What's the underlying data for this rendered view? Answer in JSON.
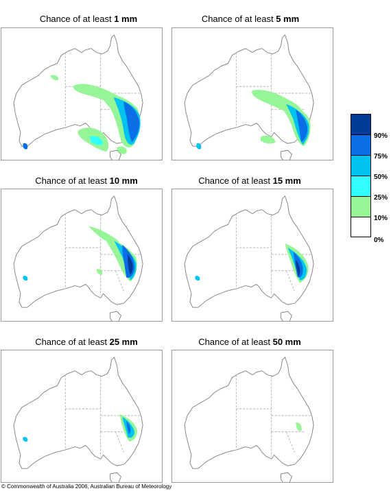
{
  "panels": [
    {
      "prefix": "Chance of at least ",
      "amount": "1 mm"
    },
    {
      "prefix": "Chance of at least ",
      "amount": "5 mm"
    },
    {
      "prefix": "Chance of at least ",
      "amount": "10 mm"
    },
    {
      "prefix": "Chance of at least ",
      "amount": "15 mm"
    },
    {
      "prefix": "Chance of at least ",
      "amount": "25 mm"
    },
    {
      "prefix": "Chance of at least ",
      "amount": "50 mm"
    }
  ],
  "legend": {
    "bands": [
      {
        "color": "#003c96"
      },
      {
        "color": "#0a6ee6"
      },
      {
        "color": "#00c3f0"
      },
      {
        "color": "#32ffff"
      },
      {
        "color": "#96f596"
      },
      {
        "color": "#ffffff"
      }
    ],
    "labels": [
      "90%",
      "75%",
      "50%",
      "25%",
      "10%",
      "0%"
    ]
  },
  "footer": "© Commonwealth of Australia 2006, Australian Bureau of Meteorology"
}
